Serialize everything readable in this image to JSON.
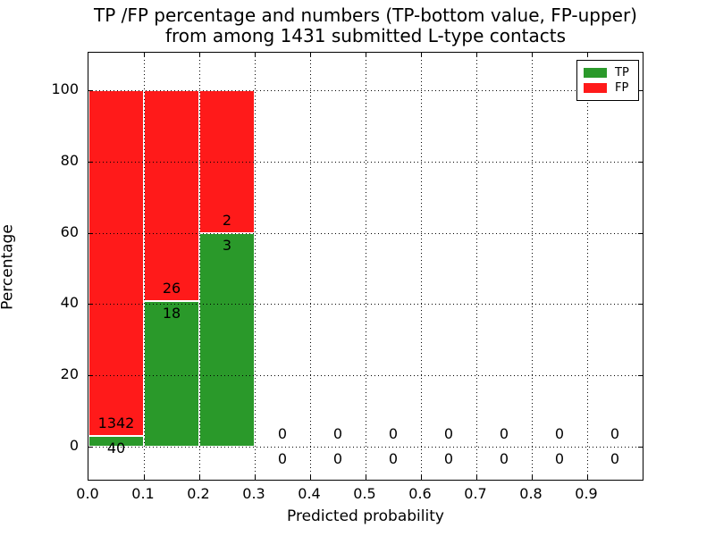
{
  "title": {
    "line1": "TP /FP percentage and numbers (TP-bottom value, FP-upper)",
    "line2": "from among 1431 submitted L-type contacts"
  },
  "chart_data": {
    "type": "bar",
    "stacked": true,
    "title": "TP /FP percentage and numbers (TP-bottom value, FP-upper) from among 1431 submitted L-type contacts",
    "xlabel": "Predicted probability",
    "ylabel": "Percentage",
    "xlim": [
      0.0,
      1.0
    ],
    "ylim": [
      -10,
      110.5
    ],
    "grid": "dotted",
    "total_submitted": 1431,
    "xticks": [
      {
        "value": 0.0,
        "label": "0.0"
      },
      {
        "value": 0.1,
        "label": "0.1"
      },
      {
        "value": 0.2,
        "label": "0.2"
      },
      {
        "value": 0.3,
        "label": "0.3"
      },
      {
        "value": 0.4,
        "label": "0.4"
      },
      {
        "value": 0.5,
        "label": "0.5"
      },
      {
        "value": 0.6,
        "label": "0.6"
      },
      {
        "value": 0.7,
        "label": "0.7"
      },
      {
        "value": 0.8,
        "label": "0.8"
      },
      {
        "value": 0.9,
        "label": "0.9"
      }
    ],
    "yticks": [
      {
        "value": 0,
        "label": "0"
      },
      {
        "value": 20,
        "label": "20"
      },
      {
        "value": 40,
        "label": "40"
      },
      {
        "value": 60,
        "label": "60"
      },
      {
        "value": 80,
        "label": "80"
      },
      {
        "value": 100,
        "label": "100"
      }
    ],
    "colors": {
      "tp": "#2A992A",
      "fp": "#FF1A1A",
      "bar_edge": "#ffffff",
      "grid": "#000000"
    },
    "legend": {
      "position": "upper right",
      "entries": [
        {
          "label": "TP",
          "color": "#2A992A"
        },
        {
          "label": "FP",
          "color": "#FF1A1A"
        }
      ]
    },
    "bins": [
      {
        "x0": 0.0,
        "x1": 0.1,
        "tp": 40,
        "fp": 1342,
        "tp_pct": 2.9,
        "fp_pct": 97.1
      },
      {
        "x0": 0.1,
        "x1": 0.2,
        "tp": 18,
        "fp": 26,
        "tp_pct": 40.9,
        "fp_pct": 59.1
      },
      {
        "x0": 0.2,
        "x1": 0.3,
        "tp": 3,
        "fp": 2,
        "tp_pct": 60.0,
        "fp_pct": 40.0
      },
      {
        "x0": 0.3,
        "x1": 0.4,
        "tp": 0,
        "fp": 0
      },
      {
        "x0": 0.4,
        "x1": 0.5,
        "tp": 0,
        "fp": 0
      },
      {
        "x0": 0.5,
        "x1": 0.6,
        "tp": 0,
        "fp": 0
      },
      {
        "x0": 0.6,
        "x1": 0.7,
        "tp": 0,
        "fp": 0
      },
      {
        "x0": 0.7,
        "x1": 0.8,
        "tp": 0,
        "fp": 0
      },
      {
        "x0": 0.8,
        "x1": 0.9,
        "tp": 0,
        "fp": 0
      },
      {
        "x0": 0.9,
        "x1": 1.0,
        "tp": 0,
        "fp": 0
      }
    ]
  }
}
